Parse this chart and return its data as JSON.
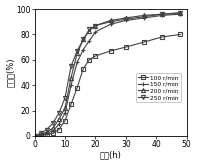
{
  "title": "",
  "xlabel": "时间(h)",
  "ylabel": "降解率(%)",
  "xlim": [
    0,
    50
  ],
  "ylim": [
    0,
    100
  ],
  "xticks": [
    0,
    10,
    20,
    30,
    40,
    50
  ],
  "yticks": [
    0,
    20,
    40,
    60,
    80,
    100
  ],
  "series": [
    {
      "label": "100 r/min",
      "marker": "s",
      "color": "#444444",
      "linestyle": "-",
      "x": [
        0,
        2,
        4,
        6,
        8,
        10,
        12,
        14,
        16,
        18,
        20,
        25,
        30,
        36,
        42,
        48
      ],
      "y": [
        0,
        0.5,
        1,
        2,
        5,
        12,
        25,
        38,
        53,
        60,
        63,
        67,
        70,
        74,
        78,
        80
      ]
    },
    {
      "label": "150 r/min",
      "marker": "+",
      "color": "#444444",
      "linestyle": "-",
      "x": [
        0,
        2,
        4,
        6,
        8,
        10,
        12,
        14,
        16,
        18,
        20,
        25,
        30,
        36,
        42,
        48
      ],
      "y": [
        0,
        1,
        2,
        4,
        9,
        18,
        40,
        58,
        68,
        75,
        82,
        88,
        91,
        93,
        95,
        96
      ]
    },
    {
      "label": "200 r/min",
      "marker": "^",
      "color": "#444444",
      "linestyle": "-",
      "x": [
        0,
        2,
        4,
        6,
        8,
        10,
        12,
        14,
        16,
        18,
        20,
        25,
        30,
        36,
        42,
        48
      ],
      "y": [
        0,
        1,
        3,
        6,
        13,
        22,
        46,
        65,
        76,
        83,
        87,
        91,
        93,
        95,
        96,
        97
      ]
    },
    {
      "label": "250 r/min",
      "marker": "v",
      "color": "#444444",
      "linestyle": "-",
      "x": [
        0,
        2,
        4,
        6,
        8,
        10,
        12,
        14,
        16,
        18,
        20,
        25,
        30,
        36,
        42,
        48
      ],
      "y": [
        0,
        2,
        5,
        10,
        18,
        30,
        55,
        67,
        76,
        84,
        87,
        90,
        92,
        94,
        96,
        97
      ]
    }
  ],
  "background_color": "#ffffff",
  "font_size": 6,
  "tick_font_size": 5.5,
  "linewidth": 0.8,
  "markersize": 3.0
}
